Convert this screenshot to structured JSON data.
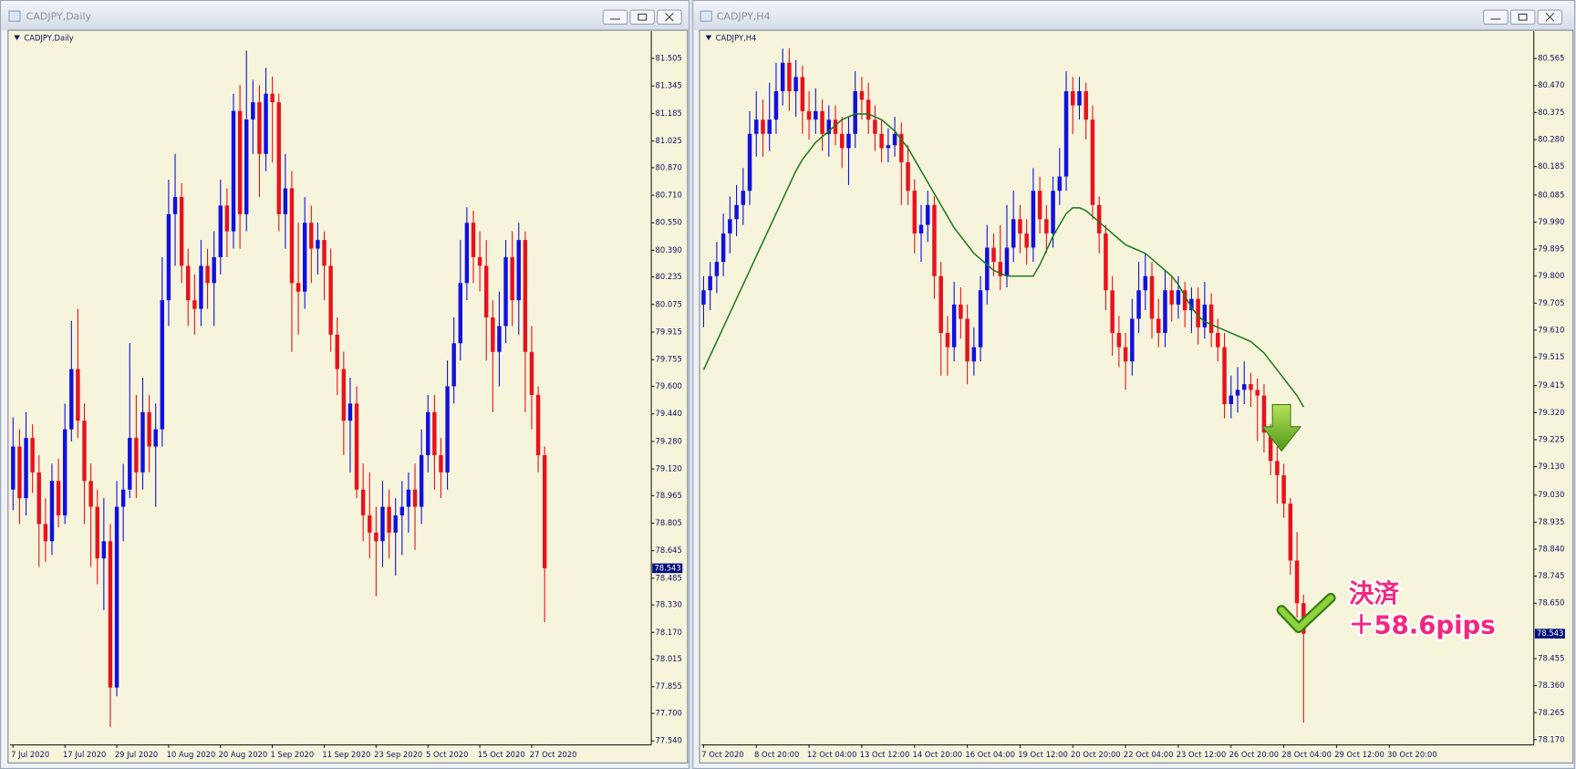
{
  "chart_data": [
    {
      "type": "candlestick",
      "title": "CADJPY,Daily",
      "categories": [
        "7 Jul 2020",
        null,
        null,
        null,
        null,
        null,
        null,
        null,
        "17 Jul 2020",
        null,
        null,
        null,
        null,
        null,
        null,
        null,
        "29 Jul 2020",
        null,
        null,
        null,
        null,
        null,
        null,
        null,
        "10 Aug 2020",
        null,
        null,
        null,
        null,
        null,
        null,
        null,
        "20 Aug 2020",
        null,
        null,
        null,
        null,
        null,
        null,
        null,
        "1 Sep 2020",
        null,
        null,
        null,
        null,
        null,
        null,
        null,
        "11 Sep 2020",
        null,
        null,
        null,
        null,
        null,
        null,
        null,
        "23 Sep 2020",
        null,
        null,
        null,
        null,
        null,
        null,
        null,
        "5 Oct 2020",
        null,
        null,
        null,
        null,
        null,
        null,
        null,
        "15 Oct 2020",
        null,
        null,
        null,
        null,
        null,
        null,
        null,
        "27 Oct 2020",
        null,
        null
      ],
      "open": [
        79.0,
        79.25,
        78.95,
        79.3,
        79.1,
        78.8,
        78.7,
        79.05,
        78.85,
        79.35,
        79.7,
        79.4,
        79.05,
        78.9,
        78.6,
        78.7,
        77.85,
        78.9,
        79.0,
        79.3,
        79.1,
        79.45,
        79.25,
        79.35,
        80.1,
        80.6,
        80.7,
        80.3,
        80.1,
        80.05,
        80.3,
        80.2,
        80.35,
        80.65,
        80.5,
        81.2,
        80.6,
        81.15,
        81.25,
        80.95,
        81.3,
        81.25,
        80.6,
        80.75,
        80.2,
        80.15,
        80.55,
        80.4,
        80.45,
        80.3,
        79.9,
        79.7,
        79.4,
        79.5,
        79.0,
        78.85,
        78.75,
        78.7,
        78.9,
        78.75,
        78.85,
        78.9,
        79.0,
        78.9,
        79.2,
        79.45,
        79.2,
        79.1,
        79.6,
        79.85,
        80.2,
        80.55,
        80.35,
        80.3,
        80.0,
        79.8,
        79.95,
        80.35,
        80.1,
        80.45,
        79.8,
        79.55,
        79.2
      ],
      "high": [
        79.42,
        79.35,
        79.45,
        79.38,
        79.2,
        78.95,
        79.15,
        79.18,
        79.5,
        79.98,
        80.05,
        79.5,
        79.15,
        79.0,
        78.95,
        78.8,
        79.05,
        79.15,
        79.85,
        79.55,
        79.65,
        79.55,
        79.5,
        80.35,
        80.8,
        80.95,
        80.78,
        80.4,
        80.25,
        80.45,
        80.4,
        80.5,
        80.8,
        80.75,
        81.3,
        81.35,
        81.55,
        81.38,
        81.35,
        81.45,
        81.4,
        81.3,
        80.95,
        80.85,
        80.55,
        80.7,
        80.65,
        80.55,
        80.5,
        80.4,
        80.0,
        79.8,
        79.65,
        79.6,
        79.15,
        79.1,
        78.9,
        79.05,
        79.0,
        78.95,
        79.05,
        79.1,
        79.15,
        79.35,
        79.55,
        79.55,
        79.3,
        79.75,
        80.0,
        80.45,
        80.64,
        80.62,
        80.5,
        80.45,
        80.1,
        80.15,
        80.45,
        80.5,
        80.55,
        80.5,
        79.95,
        79.6,
        79.25
      ],
      "low": [
        78.88,
        78.8,
        78.85,
        78.98,
        78.55,
        78.58,
        78.62,
        78.78,
        78.8,
        79.28,
        79.3,
        78.8,
        78.55,
        78.45,
        78.3,
        77.62,
        77.8,
        78.7,
        78.95,
        78.95,
        79.0,
        79.1,
        78.9,
        79.25,
        79.95,
        80.3,
        80.2,
        79.95,
        79.9,
        79.95,
        80.05,
        79.95,
        80.25,
        80.35,
        80.4,
        80.4,
        80.5,
        80.95,
        80.7,
        80.85,
        80.9,
        80.5,
        80.4,
        79.8,
        79.9,
        80.05,
        80.2,
        80.25,
        80.1,
        79.8,
        79.55,
        79.2,
        79.1,
        78.95,
        78.7,
        78.6,
        78.38,
        78.55,
        78.6,
        78.5,
        78.62,
        78.75,
        78.65,
        78.8,
        79.1,
        79.0,
        78.95,
        79.0,
        79.5,
        79.75,
        80.1,
        80.2,
        80.15,
        79.75,
        79.45,
        79.6,
        79.85,
        79.95,
        79.9,
        79.45,
        79.35,
        79.1,
        78.23
      ],
      "close": [
        79.25,
        78.95,
        79.3,
        79.1,
        78.8,
        78.7,
        79.05,
        78.85,
        79.35,
        79.7,
        79.4,
        79.05,
        78.9,
        78.6,
        78.7,
        77.85,
        78.9,
        79.0,
        79.3,
        79.1,
        79.45,
        79.25,
        79.35,
        80.1,
        80.6,
        80.7,
        80.3,
        80.1,
        80.05,
        80.3,
        80.2,
        80.35,
        80.65,
        80.5,
        81.2,
        80.6,
        81.15,
        81.25,
        80.95,
        81.3,
        81.25,
        80.6,
        80.75,
        80.2,
        80.15,
        80.55,
        80.4,
        80.45,
        80.3,
        79.9,
        79.7,
        79.4,
        79.5,
        79.0,
        78.85,
        78.75,
        78.7,
        78.9,
        78.75,
        78.85,
        78.9,
        79.0,
        78.9,
        79.2,
        79.45,
        79.2,
        79.1,
        79.6,
        79.85,
        80.2,
        80.55,
        80.35,
        80.3,
        80.0,
        79.8,
        79.95,
        80.35,
        80.1,
        80.45,
        79.8,
        79.55,
        79.2,
        78.543
      ],
      "up_color": "#1010e0",
      "down_color": "#e8121c",
      "ylim": [
        77.517,
        81.663
      ],
      "yticks": [
        81.505,
        81.345,
        81.185,
        81.025,
        {
          "value": 80.87,
          "label": "80.870"
        },
        {
          "value": 80.71,
          "label": "80.710"
        },
        {
          "value": 80.55,
          "label": "80.550"
        },
        {
          "value": 80.39,
          "label": "80.390"
        },
        80.235,
        80.075,
        79.915,
        79.755,
        {
          "value": 79.6,
          "label": "79.600"
        },
        {
          "value": 79.44,
          "label": "79.440"
        },
        {
          "value": 79.28,
          "label": "79.280"
        },
        {
          "value": 79.12,
          "label": "79.120"
        },
        78.965,
        78.805,
        78.645,
        78.485,
        {
          "value": 78.33,
          "label": "78.330"
        },
        {
          "value": 78.17,
          "label": "78.170"
        },
        78.015,
        77.855,
        {
          "value": 77.7,
          "label": "77.700"
        },
        {
          "value": 77.54,
          "label": "77.540"
        }
      ],
      "current_price": 78.543,
      "grid": false
    },
    {
      "type": "candlestick",
      "title": "CADJPY,H4",
      "categories": [
        "7 Oct 2020",
        null,
        null,
        null,
        null,
        null,
        null,
        null,
        "8 Oct 20:00",
        null,
        null,
        null,
        null,
        null,
        null,
        null,
        "12 Oct 04:00",
        null,
        null,
        null,
        null,
        null,
        null,
        null,
        "13 Oct 12:00",
        null,
        null,
        null,
        null,
        null,
        null,
        null,
        "14 Oct 20:00",
        null,
        null,
        null,
        null,
        null,
        null,
        null,
        "16 Oct 04:00",
        null,
        null,
        null,
        null,
        null,
        null,
        null,
        "19 Oct 12:00",
        null,
        null,
        null,
        null,
        null,
        null,
        null,
        "20 Oct 20:00",
        null,
        null,
        null,
        null,
        null,
        null,
        null,
        "22 Oct 04:00",
        null,
        null,
        null,
        null,
        null,
        null,
        null,
        "23 Oct 12:00",
        null,
        null,
        null,
        null,
        null,
        null,
        null,
        "26 Oct 20:00",
        null,
        null,
        null,
        null,
        null,
        null,
        null,
        "28 Oct 04:00",
        null,
        null,
        null,
        null,
        null,
        null,
        null,
        "29 Oct 12:00",
        null,
        null,
        null,
        null,
        null,
        null,
        null,
        "30 Oct 20:00"
      ],
      "open": [
        79.7,
        79.75,
        79.8,
        79.85,
        79.95,
        80.0,
        80.05,
        80.1,
        80.3,
        80.35,
        80.3,
        80.35,
        80.45,
        80.55,
        80.45,
        80.5,
        80.38,
        80.35,
        80.38,
        80.3,
        80.35,
        80.3,
        80.25,
        80.3,
        80.45,
        80.42,
        80.35,
        80.3,
        80.25,
        80.26,
        80.3,
        80.2,
        80.1,
        79.95,
        79.98,
        80.05,
        79.8,
        79.6,
        79.55,
        79.7,
        79.65,
        79.5,
        79.55,
        79.75,
        79.9,
        79.85,
        79.8,
        79.9,
        80.0,
        79.95,
        79.9,
        80.1,
        80.0,
        79.95,
        80.1,
        80.15,
        80.45,
        80.4,
        80.45,
        80.35,
        80.05,
        79.95,
        79.75,
        79.6,
        79.55,
        79.5,
        79.65,
        79.75,
        79.8,
        79.65,
        79.6,
        79.75,
        79.7,
        79.75,
        79.68,
        79.72,
        79.62,
        79.7,
        79.6,
        79.55,
        79.35,
        79.38,
        79.4,
        79.42,
        79.4,
        79.38,
        79.25,
        79.15,
        79.1,
        79.0,
        78.8,
        78.65,
        null,
        null,
        null,
        null,
        null,
        null,
        null,
        null,
        null,
        null,
        null,
        null,
        null
      ],
      "high": [
        79.8,
        79.85,
        79.92,
        80.02,
        80.08,
        80.12,
        80.18,
        80.38,
        80.45,
        80.42,
        80.48,
        80.55,
        80.6,
        80.6,
        80.56,
        80.54,
        80.45,
        80.46,
        80.42,
        80.4,
        80.4,
        80.36,
        80.36,
        80.52,
        80.5,
        80.48,
        80.4,
        80.35,
        80.32,
        80.36,
        80.34,
        80.26,
        80.14,
        80.05,
        80.1,
        80.08,
        79.85,
        79.66,
        79.78,
        79.76,
        79.7,
        79.62,
        79.8,
        79.98,
        79.95,
        79.98,
        80.05,
        80.1,
        80.05,
        80.0,
        80.18,
        80.15,
        80.05,
        80.15,
        80.25,
        80.52,
        80.5,
        80.5,
        80.48,
        80.4,
        80.08,
        79.98,
        79.8,
        79.66,
        79.6,
        79.72,
        79.85,
        79.88,
        79.85,
        79.72,
        79.82,
        79.8,
        79.8,
        79.78,
        79.76,
        79.76,
        79.78,
        79.74,
        79.65,
        79.6,
        79.45,
        79.48,
        79.5,
        79.46,
        79.44,
        79.42,
        79.28,
        79.2,
        79.14,
        79.02,
        78.9,
        78.68,
        null,
        null,
        null,
        null,
        null,
        null,
        null,
        null,
        null,
        null,
        null,
        null,
        null
      ],
      "low": [
        79.62,
        79.68,
        79.74,
        79.8,
        79.88,
        79.94,
        79.98,
        80.05,
        80.22,
        80.22,
        80.24,
        80.3,
        80.4,
        80.38,
        80.36,
        80.3,
        80.28,
        80.3,
        80.24,
        80.22,
        80.26,
        80.18,
        80.12,
        80.25,
        80.35,
        80.3,
        80.24,
        80.2,
        80.2,
        80.22,
        80.05,
        80.05,
        79.88,
        79.85,
        79.92,
        79.72,
        79.45,
        79.45,
        79.5,
        79.58,
        79.42,
        79.45,
        79.5,
        79.7,
        79.8,
        79.75,
        79.76,
        79.85,
        79.88,
        79.84,
        79.85,
        79.95,
        79.88,
        79.9,
        80.05,
        80.1,
        80.3,
        80.35,
        80.28,
        80.0,
        79.88,
        79.68,
        79.52,
        79.48,
        79.4,
        79.45,
        79.6,
        79.68,
        79.58,
        79.55,
        79.55,
        79.64,
        79.65,
        79.62,
        79.6,
        79.56,
        79.58,
        79.55,
        79.5,
        79.3,
        79.3,
        79.32,
        79.35,
        79.34,
        79.22,
        79.18,
        79.1,
        79.0,
        78.95,
        78.75,
        78.6,
        78.23,
        null,
        null,
        null,
        null,
        null,
        null,
        null,
        null,
        null,
        null,
        null,
        null,
        null
      ],
      "close": [
        79.75,
        79.8,
        79.85,
        79.95,
        80.0,
        80.05,
        80.1,
        80.3,
        80.35,
        80.3,
        80.35,
        80.45,
        80.55,
        80.45,
        80.5,
        80.38,
        80.35,
        80.38,
        80.3,
        80.35,
        80.3,
        80.25,
        80.3,
        80.45,
        80.42,
        80.35,
        80.3,
        80.25,
        80.26,
        80.3,
        80.2,
        80.1,
        79.95,
        79.98,
        80.05,
        79.8,
        79.6,
        79.55,
        79.7,
        79.65,
        79.5,
        79.55,
        79.75,
        79.9,
        79.85,
        79.8,
        79.9,
        80.0,
        79.95,
        79.9,
        80.1,
        80.0,
        79.95,
        80.1,
        80.15,
        80.45,
        80.4,
        80.45,
        80.35,
        80.05,
        79.95,
        79.75,
        79.6,
        79.55,
        79.5,
        79.65,
        79.75,
        79.8,
        79.65,
        79.6,
        79.75,
        79.7,
        79.75,
        79.68,
        79.72,
        79.62,
        79.7,
        79.6,
        79.55,
        79.35,
        79.38,
        79.4,
        79.42,
        79.4,
        79.38,
        79.25,
        79.15,
        79.1,
        79.0,
        78.8,
        78.65,
        78.543,
        null,
        null,
        null,
        null,
        null,
        null,
        null,
        null,
        null,
        null,
        null,
        null,
        null
      ],
      "moving_average": {
        "color": "#1f7a1f",
        "values": [
          79.47,
          79.52,
          79.57,
          79.62,
          79.67,
          79.72,
          79.77,
          79.82,
          79.87,
          79.92,
          79.97,
          80.02,
          80.07,
          80.12,
          80.17,
          80.21,
          80.24,
          80.27,
          80.29,
          80.31,
          80.33,
          80.35,
          80.36,
          80.37,
          80.37,
          80.37,
          80.36,
          80.35,
          80.33,
          80.31,
          80.28,
          80.25,
          80.21,
          80.17,
          80.13,
          80.09,
          80.05,
          80.01,
          79.97,
          79.94,
          79.91,
          79.88,
          79.86,
          79.84,
          79.82,
          79.81,
          79.8,
          79.8,
          79.8,
          79.8,
          79.8,
          79.84,
          79.89,
          79.94,
          79.98,
          80.02,
          80.04,
          80.04,
          80.03,
          80.01,
          79.99,
          79.97,
          79.95,
          79.93,
          79.91,
          79.9,
          79.89,
          79.88,
          79.86,
          79.84,
          79.82,
          79.8,
          79.77,
          79.73,
          79.69,
          79.66,
          79.64,
          79.63,
          79.62,
          79.61,
          79.6,
          79.59,
          79.58,
          79.57,
          79.55,
          79.53,
          79.5,
          79.47,
          79.44,
          79.41,
          79.38,
          79.34,
          null,
          null,
          null,
          null,
          null,
          null,
          null,
          null,
          null,
          null,
          null,
          null,
          null
        ]
      },
      "up_color": "#1010e0",
      "down_color": "#e8121c",
      "ylim": [
        78.152,
        80.661
      ],
      "yticks": [
        80.565,
        {
          "value": 80.47,
          "label": "80.470"
        },
        80.375,
        {
          "value": 80.28,
          "label": "80.280"
        },
        80.185,
        80.085,
        {
          "value": 79.99,
          "label": "79.990"
        },
        79.895,
        {
          "value": 79.8,
          "label": "79.800"
        },
        79.705,
        {
          "value": 79.61,
          "label": "79.610"
        },
        79.515,
        79.415,
        {
          "value": 79.32,
          "label": "79.320"
        },
        79.225,
        {
          "value": 79.13,
          "label": "79.130"
        },
        {
          "value": 79.03,
          "label": "79.030"
        },
        78.935,
        {
          "value": 78.84,
          "label": "78.840"
        },
        78.745,
        {
          "value": 78.65,
          "label": "78.650"
        },
        78.455,
        {
          "value": 78.36,
          "label": "78.360"
        },
        78.265,
        {
          "value": 78.17,
          "label": "78.170"
        }
      ],
      "current_price": 78.543,
      "grid": false,
      "annotation_lines": [
        "決済",
        "＋58.6pips"
      ]
    }
  ]
}
